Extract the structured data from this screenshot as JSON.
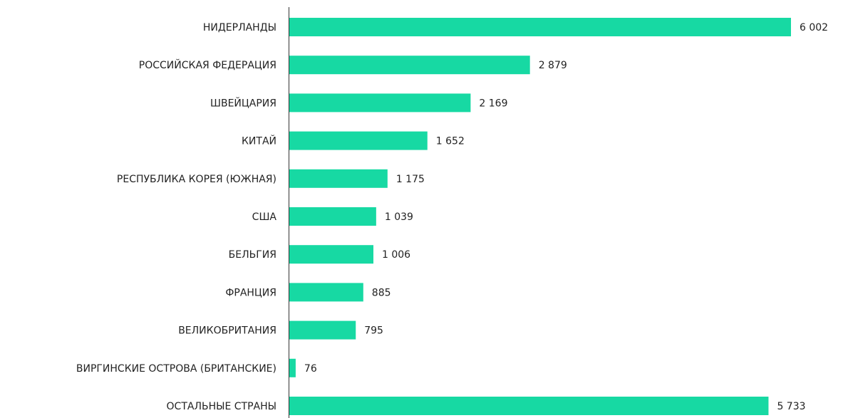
{
  "chart_data": {
    "type": "bar",
    "orientation": "horizontal",
    "categories": [
      "НИДЕРЛАНДЫ",
      "РОССИЙСКАЯ ФЕДЕРАЦИЯ",
      "ШВЕЙЦАРИЯ",
      "КИТАЙ",
      "РЕСПУБЛИКА КОРЕЯ (ЮЖНАЯ)",
      "США",
      "БЕЛЬГИЯ",
      "ФРАНЦИЯ",
      "ВЕЛИКОБРИТАНИЯ",
      "ВИРГИНСКИЕ ОСТРОВА (БРИТАНСКИЕ)",
      "ОСТАЛЬНЫЕ СТРАНЫ"
    ],
    "values": [
      6002,
      2879,
      2169,
      1652,
      1175,
      1039,
      1006,
      885,
      795,
      76,
      5733
    ],
    "value_labels": [
      "6 002",
      "2 879",
      "2 169",
      "1 652",
      "1 175",
      "1 039",
      "1 006",
      "885",
      "795",
      "76",
      "5 733"
    ],
    "color": "#17d9a3"
  }
}
